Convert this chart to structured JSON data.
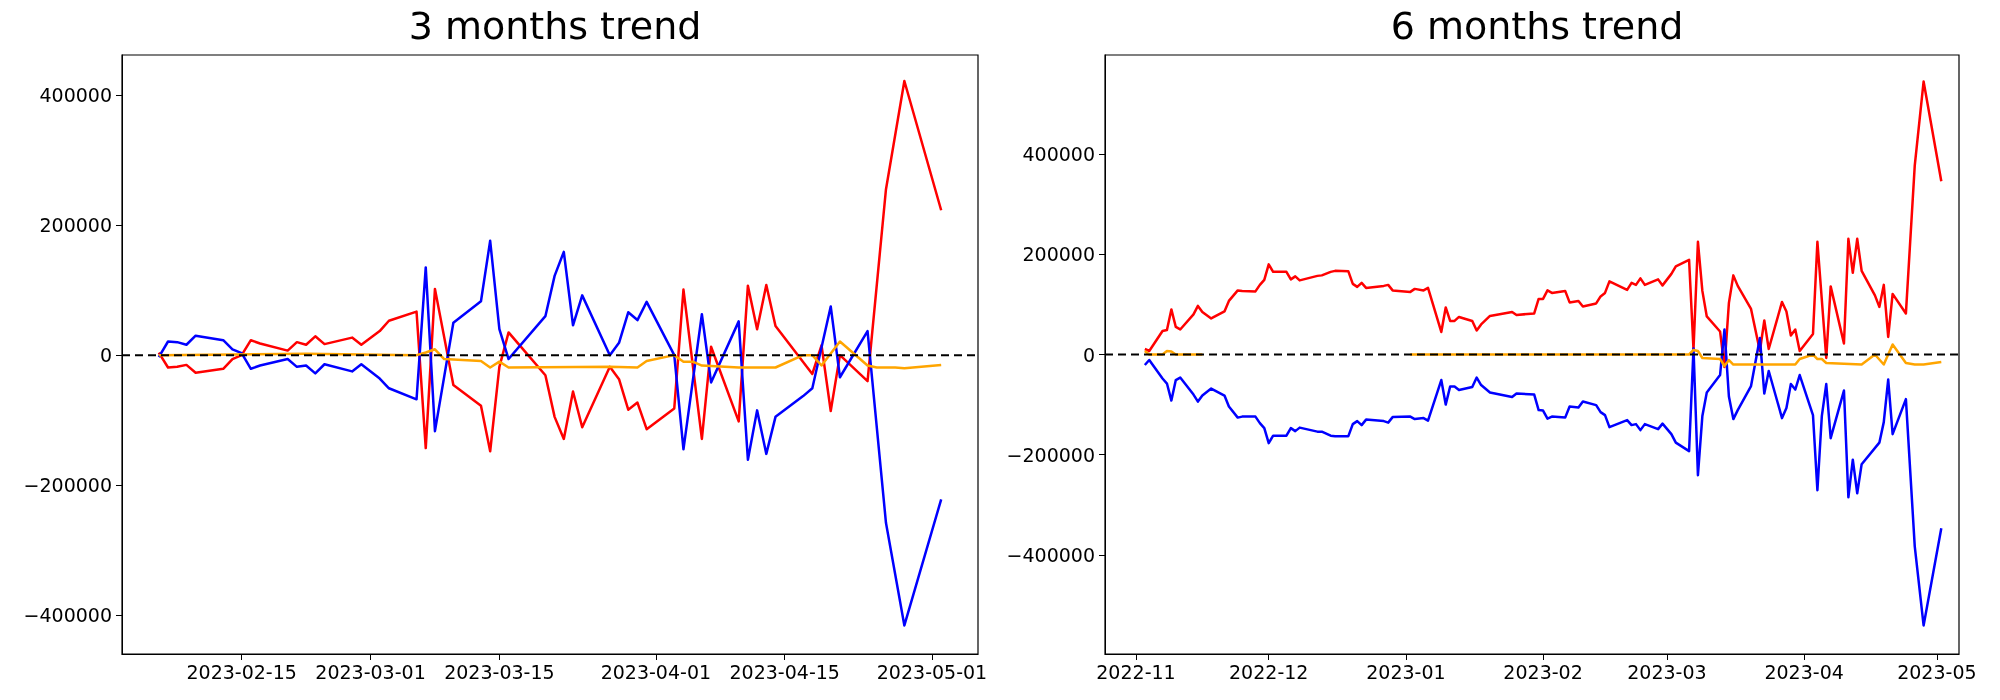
{
  "chart_data": [
    {
      "type": "line",
      "title": "3 months trend",
      "xlim": [
        "2023-02-02",
        "2023-05-06"
      ],
      "xticks": [
        "2023-02-15",
        "2023-03-01",
        "2023-03-15",
        "2023-04-01",
        "2023-04-15",
        "2023-05-01"
      ],
      "ylim": [
        -460000,
        462000
      ],
      "yticks": [
        -400000,
        -200000,
        0,
        200000,
        400000
      ],
      "ref_lines": [
        {
          "axis": "y",
          "value": 0,
          "color": "#000000",
          "line_style": "dashed"
        }
      ],
      "series": [
        {
          "color": "#ff0000",
          "x": [
            "2023-02-06",
            "2023-02-07",
            "2023-02-08",
            "2023-02-09",
            "2023-02-10",
            "2023-02-13",
            "2023-02-14",
            "2023-02-15",
            "2023-02-16",
            "2023-02-17",
            "2023-02-20",
            "2023-02-21",
            "2023-02-22",
            "2023-02-23",
            "2023-02-24",
            "2023-02-27",
            "2023-02-28",
            "2023-03-02",
            "2023-03-03",
            "2023-03-06",
            "2023-03-07",
            "2023-03-08",
            "2023-03-10",
            "2023-03-13",
            "2023-03-14",
            "2023-03-15",
            "2023-03-16",
            "2023-03-20",
            "2023-03-21",
            "2023-03-22",
            "2023-03-23",
            "2023-03-24",
            "2023-03-27",
            "2023-03-28",
            "2023-03-29",
            "2023-03-30",
            "2023-03-31",
            "2023-04-03",
            "2023-04-04",
            "2023-04-06",
            "2023-04-07",
            "2023-04-10",
            "2023-04-11",
            "2023-04-12",
            "2023-04-13",
            "2023-04-14",
            "2023-04-18",
            "2023-04-19",
            "2023-04-20",
            "2023-04-21",
            "2023-04-24",
            "2023-04-26",
            "2023-04-28",
            "2023-05-02"
          ],
          "values": [
            4000,
            -19000,
            -18000,
            -15000,
            -27000,
            -21000,
            -6000,
            0,
            23000,
            18000,
            7000,
            20000,
            16000,
            29000,
            17000,
            27000,
            16000,
            37000,
            53000,
            67000,
            -143000,
            102000,
            -46000,
            -78000,
            -148000,
            -18000,
            35000,
            -31000,
            -95000,
            -129000,
            -56000,
            -111000,
            -18000,
            -37000,
            -84000,
            -73000,
            -114000,
            -82000,
            101000,
            -129000,
            13000,
            -102000,
            107000,
            40000,
            108000,
            45000,
            -29000,
            15000,
            -86000,
            0,
            -40000,
            255000,
            422000,
            223000
          ]
        },
        {
          "color": "#0000ff",
          "x": [
            "2023-02-06",
            "2023-02-07",
            "2023-02-08",
            "2023-02-09",
            "2023-02-10",
            "2023-02-13",
            "2023-02-14",
            "2023-02-15",
            "2023-02-16",
            "2023-02-17",
            "2023-02-20",
            "2023-02-21",
            "2023-02-22",
            "2023-02-23",
            "2023-02-24",
            "2023-02-27",
            "2023-02-28",
            "2023-03-02",
            "2023-03-03",
            "2023-03-06",
            "2023-03-07",
            "2023-03-08",
            "2023-03-10",
            "2023-03-13",
            "2023-03-14",
            "2023-03-15",
            "2023-03-16",
            "2023-03-20",
            "2023-03-21",
            "2023-03-22",
            "2023-03-23",
            "2023-03-24",
            "2023-03-27",
            "2023-03-28",
            "2023-03-29",
            "2023-03-30",
            "2023-03-31",
            "2023-04-03",
            "2023-04-04",
            "2023-04-06",
            "2023-04-07",
            "2023-04-10",
            "2023-04-11",
            "2023-04-12",
            "2023-04-13",
            "2023-04-14",
            "2023-04-17",
            "2023-04-18",
            "2023-04-20",
            "2023-04-21",
            "2023-04-24",
            "2023-04-26",
            "2023-04-28",
            "2023-05-02"
          ],
          "values": [
            -3000,
            21000,
            20000,
            16000,
            30000,
            23000,
            9000,
            3000,
            -21000,
            -16000,
            -6000,
            -18000,
            -16000,
            -28000,
            -14000,
            -25000,
            -14000,
            -36000,
            -51000,
            -68000,
            135000,
            -117000,
            50000,
            83000,
            176000,
            40000,
            -6000,
            60000,
            122000,
            159000,
            46000,
            92000,
            0,
            19000,
            66000,
            54000,
            82000,
            0,
            -145000,
            63000,
            -42000,
            52000,
            -161000,
            -85000,
            -152000,
            -95000,
            -63000,
            -51000,
            75000,
            -34000,
            37000,
            -258000,
            -416000,
            -222000
          ]
        },
        {
          "color": "#ffa500",
          "x": [
            "2023-02-06",
            "2023-02-22",
            "2023-03-06",
            "2023-03-07",
            "2023-03-08",
            "2023-03-09",
            "2023-03-13",
            "2023-03-14",
            "2023-03-15",
            "2023-03-16",
            "2023-03-27",
            "2023-03-30",
            "2023-03-31",
            "2023-04-03",
            "2023-04-04",
            "2023-04-05",
            "2023-04-06",
            "2023-04-10",
            "2023-04-14",
            "2023-04-17",
            "2023-04-18",
            "2023-04-19",
            "2023-04-21",
            "2023-04-24",
            "2023-04-25",
            "2023-04-27",
            "2023-04-28",
            "2023-05-02"
          ],
          "values": [
            0,
            2000,
            0,
            4000,
            9000,
            -6000,
            -9000,
            -19000,
            -10000,
            -19000,
            -18000,
            -19000,
            -9000,
            0,
            -10000,
            -10000,
            -16000,
            -19000,
            -19000,
            0,
            0,
            -16000,
            21000,
            -16000,
            -19000,
            -19000,
            -20000,
            -15000
          ]
        }
      ]
    },
    {
      "type": "line",
      "title": "6 months trend",
      "xlim": [
        "2022-10-25",
        "2023-05-06"
      ],
      "xticks": [
        "2022-11",
        "2022-12",
        "2023-01",
        "2023-02",
        "2023-03",
        "2023-04",
        "2023-05"
      ],
      "ylim": [
        -598000,
        598000
      ],
      "yticks": [
        -400000,
        -200000,
        0,
        200000,
        400000
      ],
      "ref_lines": [
        {
          "axis": "y",
          "value": 0,
          "color": "#000000",
          "line_style": "dashed"
        }
      ],
      "series": [
        {
          "color": "#ff0000",
          "x": [
            "2022-11-03",
            "2022-11-04",
            "2022-11-07",
            "2022-11-08",
            "2022-11-09",
            "2022-11-10",
            "2022-11-11",
            "2022-11-14",
            "2022-11-15",
            "2022-11-16",
            "2022-11-18",
            "2022-11-21",
            "2022-11-22",
            "2022-11-24",
            "2022-11-25",
            "2022-11-28",
            "2022-11-29",
            "2022-11-30",
            "2022-12-01",
            "2022-12-02",
            "2022-12-05",
            "2022-12-06",
            "2022-12-07",
            "2022-12-08",
            "2022-12-12",
            "2022-12-13",
            "2022-12-15",
            "2022-12-16",
            "2022-12-19",
            "2022-12-20",
            "2022-12-21",
            "2022-12-22",
            "2022-12-23",
            "2022-12-27",
            "2022-12-28",
            "2022-12-29",
            "2023-01-02",
            "2023-01-03",
            "2023-01-05",
            "2023-01-06",
            "2023-01-09",
            "2023-01-10",
            "2023-01-11",
            "2023-01-12",
            "2023-01-13",
            "2023-01-16",
            "2023-01-17",
            "2023-01-18",
            "2023-01-20",
            "2023-01-25",
            "2023-01-26",
            "2023-01-30",
            "2023-01-31",
            "2023-02-01",
            "2023-02-02",
            "2023-02-03",
            "2023-02-06",
            "2023-02-07",
            "2023-02-09",
            "2023-02-10",
            "2023-02-13",
            "2023-02-14",
            "2023-02-15",
            "2023-02-16",
            "2023-02-20",
            "2023-02-21",
            "2023-02-22",
            "2023-02-23",
            "2023-02-24",
            "2023-02-27",
            "2023-02-28",
            "2023-03-02",
            "2023-03-03",
            "2023-03-06",
            "2023-03-07",
            "2023-03-08",
            "2023-03-09",
            "2023-03-10",
            "2023-03-13",
            "2023-03-14",
            "2023-03-15",
            "2023-03-16",
            "2023-03-17",
            "2023-03-20",
            "2023-03-22",
            "2023-03-23",
            "2023-03-24",
            "2023-03-27",
            "2023-03-28",
            "2023-03-29",
            "2023-03-30",
            "2023-03-31",
            "2023-04-03",
            "2023-04-04",
            "2023-04-06",
            "2023-04-07",
            "2023-04-10",
            "2023-04-11",
            "2023-04-12",
            "2023-04-13",
            "2023-04-14",
            "2023-04-17",
            "2023-04-18",
            "2023-04-19",
            "2023-04-20",
            "2023-04-21",
            "2023-04-24",
            "2023-04-26",
            "2023-04-28",
            "2023-05-02"
          ],
          "values": [
            11000,
            7000,
            47000,
            49000,
            90000,
            55000,
            50000,
            80000,
            97000,
            85000,
            72000,
            86000,
            107000,
            128000,
            127000,
            126000,
            139000,
            149000,
            180000,
            165000,
            165000,
            150000,
            156000,
            148000,
            157000,
            158000,
            165000,
            167000,
            166000,
            141000,
            135000,
            143000,
            133000,
            137000,
            139000,
            128000,
            125000,
            131000,
            128000,
            133000,
            45000,
            94000,
            67000,
            67000,
            75000,
            67000,
            48000,
            60000,
            77000,
            85000,
            79000,
            82000,
            111000,
            111000,
            128000,
            123000,
            127000,
            104000,
            107000,
            96000,
            102000,
            116000,
            123000,
            146000,
            129000,
            143000,
            139000,
            152000,
            139000,
            150000,
            138000,
            161000,
            176000,
            189000,
            10000,
            225000,
            127000,
            76000,
            46000,
            -25000,
            103000,
            158000,
            137000,
            91000,
            7000,
            68000,
            11000,
            105000,
            86000,
            38000,
            50000,
            7000,
            41000,
            225000,
            -7000,
            136000,
            22000,
            231000,
            163000,
            231000,
            167000,
            118000,
            95000,
            139000,
            35000,
            121000,
            82000,
            377000,
            545000,
            346000
          ]
        },
        {
          "color": "#0000ff",
          "x": [
            "2022-11-03",
            "2022-11-04",
            "2022-11-07",
            "2022-11-08",
            "2022-11-09",
            "2022-11-10",
            "2022-11-11",
            "2022-11-14",
            "2022-11-15",
            "2022-11-16",
            "2022-11-18",
            "2022-11-21",
            "2022-11-22",
            "2022-11-24",
            "2022-11-25",
            "2022-11-28",
            "2022-11-29",
            "2022-11-30",
            "2022-12-01",
            "2022-12-02",
            "2022-12-05",
            "2022-12-06",
            "2022-12-07",
            "2022-12-08",
            "2022-12-12",
            "2022-12-13",
            "2022-12-15",
            "2022-12-16",
            "2022-12-19",
            "2022-12-20",
            "2022-12-21",
            "2022-12-22",
            "2022-12-23",
            "2022-12-27",
            "2022-12-28",
            "2022-12-29",
            "2023-01-02",
            "2023-01-03",
            "2023-01-05",
            "2023-01-06",
            "2023-01-09",
            "2023-01-10",
            "2023-01-11",
            "2023-01-12",
            "2023-01-13",
            "2023-01-16",
            "2023-01-17",
            "2023-01-18",
            "2023-01-20",
            "2023-01-25",
            "2023-01-26",
            "2023-01-30",
            "2023-01-31",
            "2023-02-01",
            "2023-02-02",
            "2023-02-03",
            "2023-02-06",
            "2023-02-07",
            "2023-02-09",
            "2023-02-10",
            "2023-02-13",
            "2023-02-14",
            "2023-02-15",
            "2023-02-16",
            "2023-02-20",
            "2023-02-21",
            "2023-02-22",
            "2023-02-23",
            "2023-02-24",
            "2023-02-27",
            "2023-02-28",
            "2023-03-02",
            "2023-03-03",
            "2023-03-06",
            "2023-03-07",
            "2023-03-08",
            "2023-03-09",
            "2023-03-10",
            "2023-03-13",
            "2023-03-14",
            "2023-03-15",
            "2023-03-16",
            "2023-03-17",
            "2023-03-20",
            "2023-03-22",
            "2023-03-23",
            "2023-03-24",
            "2023-03-27",
            "2023-03-28",
            "2023-03-29",
            "2023-03-30",
            "2023-03-31",
            "2023-04-03",
            "2023-04-04",
            "2023-04-05",
            "2023-04-06",
            "2023-04-07",
            "2023-04-10",
            "2023-04-11",
            "2023-04-12",
            "2023-04-13",
            "2023-04-14",
            "2023-04-18",
            "2023-04-19",
            "2023-04-20",
            "2023-04-21",
            "2023-04-24",
            "2023-04-26",
            "2023-04-28",
            "2023-05-02"
          ],
          "values": [
            -21000,
            -11000,
            -48000,
            -58000,
            -92000,
            -51000,
            -46000,
            -80000,
            -94000,
            -82000,
            -68000,
            -82000,
            -104000,
            -126000,
            -124000,
            -124000,
            -137000,
            -147000,
            -177000,
            -162000,
            -162000,
            -147000,
            -153000,
            -146000,
            -154000,
            -154000,
            -162000,
            -163000,
            -163000,
            -139000,
            -133000,
            -141000,
            -130000,
            -133000,
            -136000,
            -125000,
            -124000,
            -129000,
            -127000,
            -132000,
            -51000,
            -100000,
            -64000,
            -64000,
            -71000,
            -65000,
            -46000,
            -61000,
            -76000,
            -85000,
            -78000,
            -80000,
            -111000,
            -112000,
            -128000,
            -124000,
            -126000,
            -104000,
            -106000,
            -94000,
            -101000,
            -115000,
            -121000,
            -145000,
            -131000,
            -141000,
            -139000,
            -151000,
            -139000,
            -149000,
            -138000,
            -159000,
            -176000,
            -193000,
            12000,
            -241000,
            -123000,
            -76000,
            -41000,
            50000,
            -84000,
            -129000,
            -111000,
            -63000,
            33000,
            -78000,
            -33000,
            -127000,
            -107000,
            -59000,
            -70000,
            -41000,
            -121000,
            -271000,
            -123000,
            -59000,
            -167000,
            -72000,
            -285000,
            -210000,
            -277000,
            -219000,
            -176000,
            -135000,
            -50000,
            -159000,
            -89000,
            -383000,
            -541000,
            -347000
          ]
        },
        {
          "color": "#ffa500",
          "x": [
            "2022-11-03",
            "2022-11-04",
            "2022-11-07",
            "2022-11-08",
            "2022-11-09",
            "2022-11-10",
            "2022-11-16",
            "2022-12-15",
            "2023-01-02",
            "2023-03-06",
            "2023-03-07",
            "2023-03-08",
            "2023-03-09",
            "2023-03-13",
            "2023-03-14",
            "2023-03-15",
            "2023-03-16",
            "2023-03-22",
            "2023-03-30",
            "2023-03-31",
            "2023-04-03",
            "2023-04-04",
            "2023-04-05",
            "2023-04-06",
            "2023-04-14",
            "2023-04-17",
            "2023-04-19",
            "2023-04-21",
            "2023-04-24",
            "2023-04-26",
            "2023-04-28",
            "2023-05-02"
          ],
          "values": [
            7000,
            0,
            0,
            7000,
            6000,
            0,
            0,
            null,
            0,
            0,
            9000,
            7000,
            -7000,
            -9000,
            -23000,
            -11000,
            -20000,
            -20000,
            -20000,
            -9000,
            0,
            -9000,
            -9000,
            -17000,
            -20000,
            0,
            -20000,
            20000,
            -17000,
            -20000,
            -20000,
            -15000
          ]
        }
      ]
    }
  ]
}
